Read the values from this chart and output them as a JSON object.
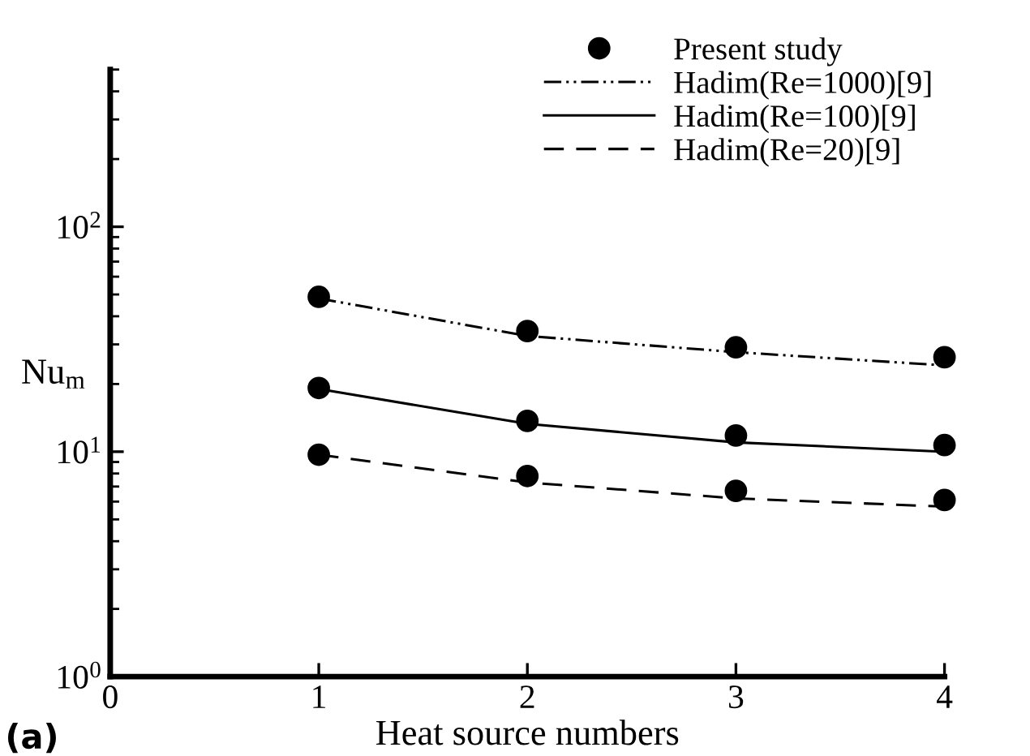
{
  "chart_data": {
    "type": "line",
    "xlabel": "Heat source numbers",
    "ylabel": "Nu$_{m}$",
    "x": [
      1,
      2,
      3,
      4
    ],
    "series": [
      {
        "name": "Present study",
        "type": "scatter",
        "color": "#000000",
        "marker": "circle",
        "x": [
          1,
          2,
          3,
          4,
          1,
          2,
          3,
          4,
          1,
          2,
          3,
          4
        ],
        "values": [
          48.8,
          34.4,
          29.1,
          26.3,
          19.2,
          13.7,
          11.8,
          10.7,
          9.7,
          7.8,
          6.7,
          6.1
        ]
      },
      {
        "name": "Hadim(Re=1000)[9]",
        "color": "#000000",
        "line_style": "dashdotdot",
        "values": [
          48,
          32.7,
          27.7,
          24.2
        ]
      },
      {
        "name": "Hadim(Re=100)[9]",
        "color": "#000000",
        "line_style": "solid",
        "values": [
          19,
          13.3,
          11.0,
          10.0
        ]
      },
      {
        "name": "Hadim(Re=20)[9]",
        "color": "#000000",
        "line_style": "dashed",
        "values": [
          9.7,
          7.3,
          6.2,
          5.7
        ]
      }
    ],
    "log": "y",
    "xlim": [
      0,
      4
    ],
    "ylim": [
      1,
      500
    ],
    "xticks": [
      0,
      1,
      2,
      3,
      4
    ],
    "yticks": [
      {
        "value": 1,
        "label": "10$^{0}$"
      },
      {
        "value": 10,
        "label": "10$^{1}$"
      },
      {
        "value": 100,
        "label": "10$^{2}$"
      }
    ],
    "grid": false,
    "legend": "top right",
    "annotations": [
      "(a)"
    ]
  }
}
